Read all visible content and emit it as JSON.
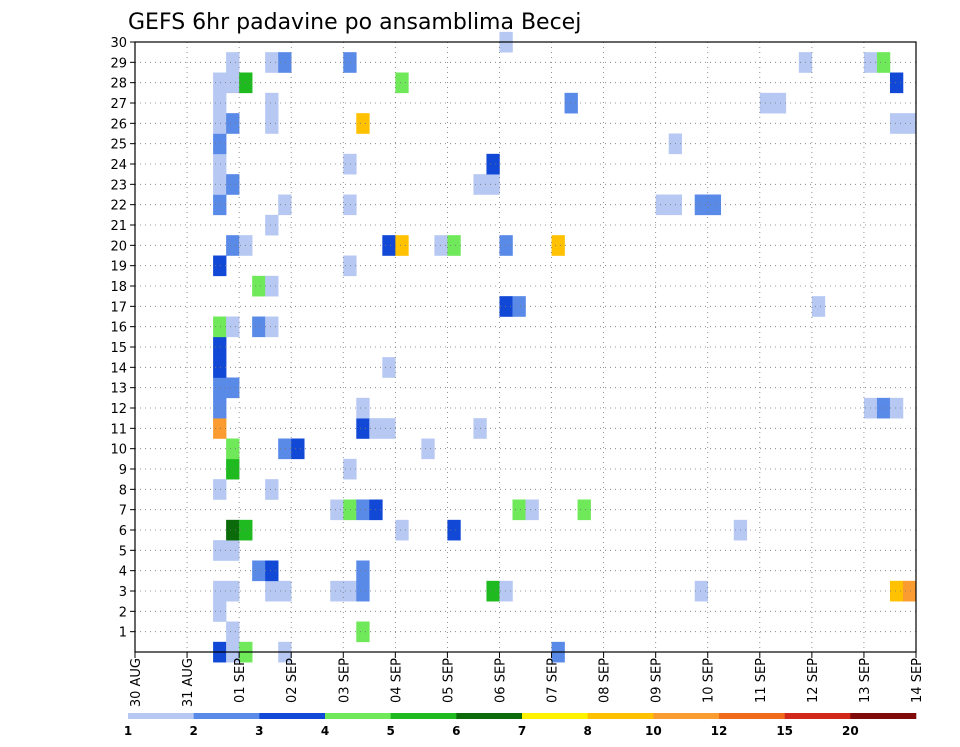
{
  "chart_data": {
    "type": "heatmap",
    "title": "GEFS 6hr padavine po ansamblima Becej",
    "xlabel": "",
    "ylabel": "",
    "x_tick_labels": [
      "30 AUG",
      "31 AUG",
      "01 SEP",
      "02 SEP",
      "03 SEP",
      "04 SEP",
      "05 SEP",
      "06 SEP",
      "07 SEP",
      "08 SEP",
      "09 SEP",
      "10 SEP",
      "11 SEP",
      "12 SEP",
      "13 SEP",
      "14 SEP"
    ],
    "y_tick_labels": [
      "1",
      "2",
      "3",
      "4",
      "5",
      "6",
      "7",
      "8",
      "9",
      "10",
      "11",
      "12",
      "13",
      "14",
      "15",
      "16",
      "17",
      "18",
      "19",
      "20",
      "21",
      "22",
      "23",
      "24",
      "25",
      "26",
      "27",
      "28",
      "29",
      "30"
    ],
    "ylim": [
      0,
      30
    ],
    "x_unit": "6-hour step from 30 AUG 00Z",
    "grid": true,
    "colorbar": {
      "tick_labels": [
        "1",
        "2",
        "3",
        "4",
        "5",
        "6",
        "7",
        "8",
        "10",
        "12",
        "15",
        "20"
      ],
      "colors": [
        "#b7c8f3",
        "#5a8ae8",
        "#1148d6",
        "#6fe85a",
        "#1fba1f",
        "#0b6b0b",
        "#fff200",
        "#ffc100",
        "#fb9c30",
        "#f06a1a",
        "#d2281a",
        "#800a0a"
      ]
    },
    "cells": [
      {
        "x": 6,
        "y": 0,
        "level": 3
      },
      {
        "x": 7,
        "y": 0,
        "level": 1
      },
      {
        "x": 8,
        "y": 0,
        "level": 4
      },
      {
        "x": 11,
        "y": 0,
        "level": 1
      },
      {
        "x": 32,
        "y": 0,
        "level": 2
      },
      {
        "x": 7,
        "y": 1,
        "level": 1
      },
      {
        "x": 17,
        "y": 1,
        "level": 4
      },
      {
        "x": 6,
        "y": 2,
        "level": 1
      },
      {
        "x": 6,
        "y": 3,
        "level": 1
      },
      {
        "x": 7,
        "y": 3,
        "level": 1
      },
      {
        "x": 10,
        "y": 3,
        "level": 1
      },
      {
        "x": 11,
        "y": 3,
        "level": 1
      },
      {
        "x": 15,
        "y": 3,
        "level": 1
      },
      {
        "x": 16,
        "y": 3,
        "level": 1
      },
      {
        "x": 17,
        "y": 3,
        "level": 2
      },
      {
        "x": 27,
        "y": 3,
        "level": 5
      },
      {
        "x": 28,
        "y": 3,
        "level": 1
      },
      {
        "x": 43,
        "y": 3,
        "level": 1
      },
      {
        "x": 58,
        "y": 3,
        "level": 8
      },
      {
        "x": 59,
        "y": 3,
        "level": 9
      },
      {
        "x": 9,
        "y": 4,
        "level": 2
      },
      {
        "x": 10,
        "y": 4,
        "level": 3
      },
      {
        "x": 17,
        "y": 4,
        "level": 2
      },
      {
        "x": 6,
        "y": 5,
        "level": 1
      },
      {
        "x": 7,
        "y": 5,
        "level": 1
      },
      {
        "x": 7,
        "y": 6,
        "level": 6
      },
      {
        "x": 8,
        "y": 6,
        "level": 5
      },
      {
        "x": 20,
        "y": 6,
        "level": 1
      },
      {
        "x": 24,
        "y": 6,
        "level": 3
      },
      {
        "x": 46,
        "y": 6,
        "level": 1
      },
      {
        "x": 15,
        "y": 7,
        "level": 1
      },
      {
        "x": 16,
        "y": 7,
        "level": 4
      },
      {
        "x": 17,
        "y": 7,
        "level": 2
      },
      {
        "x": 18,
        "y": 7,
        "level": 3
      },
      {
        "x": 29,
        "y": 7,
        "level": 4
      },
      {
        "x": 30,
        "y": 7,
        "level": 1
      },
      {
        "x": 34,
        "y": 7,
        "level": 4
      },
      {
        "x": 6,
        "y": 8,
        "level": 1
      },
      {
        "x": 10,
        "y": 8,
        "level": 1
      },
      {
        "x": 7,
        "y": 9,
        "level": 5
      },
      {
        "x": 16,
        "y": 9,
        "level": 1
      },
      {
        "x": 7,
        "y": 10,
        "level": 4
      },
      {
        "x": 11,
        "y": 10,
        "level": 2
      },
      {
        "x": 12,
        "y": 10,
        "level": 3
      },
      {
        "x": 22,
        "y": 10,
        "level": 1
      },
      {
        "x": 6,
        "y": 11,
        "level": 9
      },
      {
        "x": 17,
        "y": 11,
        "level": 3
      },
      {
        "x": 18,
        "y": 11,
        "level": 1
      },
      {
        "x": 19,
        "y": 11,
        "level": 1
      },
      {
        "x": 26,
        "y": 11,
        "level": 1
      },
      {
        "x": 6,
        "y": 12,
        "level": 2
      },
      {
        "x": 17,
        "y": 12,
        "level": 1
      },
      {
        "x": 56,
        "y": 12,
        "level": 1
      },
      {
        "x": 57,
        "y": 12,
        "level": 2
      },
      {
        "x": 58,
        "y": 12,
        "level": 1
      },
      {
        "x": 6,
        "y": 13,
        "level": 2
      },
      {
        "x": 7,
        "y": 13,
        "level": 2
      },
      {
        "x": 6,
        "y": 14,
        "level": 3
      },
      {
        "x": 19,
        "y": 14,
        "level": 1
      },
      {
        "x": 6,
        "y": 15,
        "level": 3
      },
      {
        "x": 6,
        "y": 16,
        "level": 4
      },
      {
        "x": 7,
        "y": 16,
        "level": 1
      },
      {
        "x": 9,
        "y": 16,
        "level": 2
      },
      {
        "x": 10,
        "y": 16,
        "level": 1
      },
      {
        "x": 28,
        "y": 17,
        "level": 3
      },
      {
        "x": 29,
        "y": 17,
        "level": 2
      },
      {
        "x": 52,
        "y": 17,
        "level": 1
      },
      {
        "x": 9,
        "y": 18,
        "level": 4
      },
      {
        "x": 10,
        "y": 18,
        "level": 1
      },
      {
        "x": 6,
        "y": 19,
        "level": 3
      },
      {
        "x": 16,
        "y": 19,
        "level": 1
      },
      {
        "x": 7,
        "y": 20,
        "level": 2
      },
      {
        "x": 8,
        "y": 20,
        "level": 1
      },
      {
        "x": 19,
        "y": 20,
        "level": 3
      },
      {
        "x": 20,
        "y": 20,
        "level": 8
      },
      {
        "x": 23,
        "y": 20,
        "level": 1
      },
      {
        "x": 24,
        "y": 20,
        "level": 4
      },
      {
        "x": 28,
        "y": 20,
        "level": 2
      },
      {
        "x": 32,
        "y": 20,
        "level": 8
      },
      {
        "x": 10,
        "y": 21,
        "level": 1
      },
      {
        "x": 6,
        "y": 22,
        "level": 2
      },
      {
        "x": 11,
        "y": 22,
        "level": 1
      },
      {
        "x": 16,
        "y": 22,
        "level": 1
      },
      {
        "x": 40,
        "y": 22,
        "level": 1
      },
      {
        "x": 41,
        "y": 22,
        "level": 1
      },
      {
        "x": 43,
        "y": 22,
        "level": 2
      },
      {
        "x": 44,
        "y": 22,
        "level": 2
      },
      {
        "x": 6,
        "y": 23,
        "level": 1
      },
      {
        "x": 7,
        "y": 23,
        "level": 2
      },
      {
        "x": 26,
        "y": 23,
        "level": 1
      },
      {
        "x": 27,
        "y": 23,
        "level": 1
      },
      {
        "x": 6,
        "y": 24,
        "level": 1
      },
      {
        "x": 16,
        "y": 24,
        "level": 1
      },
      {
        "x": 27,
        "y": 24,
        "level": 3
      },
      {
        "x": 6,
        "y": 25,
        "level": 2
      },
      {
        "x": 41,
        "y": 25,
        "level": 1
      },
      {
        "x": 6,
        "y": 26,
        "level": 1
      },
      {
        "x": 7,
        "y": 26,
        "level": 2
      },
      {
        "x": 10,
        "y": 26,
        "level": 1
      },
      {
        "x": 17,
        "y": 26,
        "level": 8
      },
      {
        "x": 58,
        "y": 26,
        "level": 1
      },
      {
        "x": 59,
        "y": 26,
        "level": 1
      },
      {
        "x": 6,
        "y": 27,
        "level": 1
      },
      {
        "x": 10,
        "y": 27,
        "level": 1
      },
      {
        "x": 33,
        "y": 27,
        "level": 2
      },
      {
        "x": 48,
        "y": 27,
        "level": 1
      },
      {
        "x": 49,
        "y": 27,
        "level": 1
      },
      {
        "x": 6,
        "y": 28,
        "level": 1
      },
      {
        "x": 7,
        "y": 28,
        "level": 1
      },
      {
        "x": 8,
        "y": 28,
        "level": 5
      },
      {
        "x": 20,
        "y": 28,
        "level": 4
      },
      {
        "x": 58,
        "y": 28,
        "level": 3
      },
      {
        "x": 7,
        "y": 29,
        "level": 1
      },
      {
        "x": 10,
        "y": 29,
        "level": 1
      },
      {
        "x": 11,
        "y": 29,
        "level": 2
      },
      {
        "x": 16,
        "y": 29,
        "level": 2
      },
      {
        "x": 51,
        "y": 29,
        "level": 1
      },
      {
        "x": 56,
        "y": 29,
        "level": 1
      },
      {
        "x": 57,
        "y": 29,
        "level": 4
      },
      {
        "x": 28,
        "y": 30,
        "level": 1
      }
    ]
  }
}
